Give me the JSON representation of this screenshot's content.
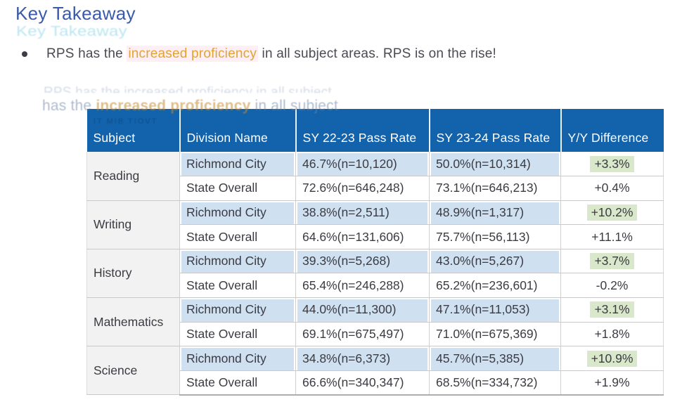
{
  "heading": {
    "title": "Key Takeaway",
    "color": "#3a5bab"
  },
  "takeaway": {
    "bullet_prefix": "RPS has the ",
    "highlight": "increased proficiency",
    "bullet_suffix": " in all subject areas. RPS is on the rise!",
    "highlight_color": "#e2a332"
  },
  "artifacts": {
    "ghost_heading": "Key Takeaway",
    "ghost_fragments": "RPS has the increased proficiency in all subject",
    "ghost_echo_prefix": "has the ",
    "ghost_echo_highlight": "increased proficiency",
    "ghost_echo_suffix": " in all subject",
    "ghost_tiny_text": "IT MIB TIOVT"
  },
  "table": {
    "columns": [
      "Subject",
      "Division Name",
      "SY 22-23 Pass Rate",
      "SY 23-24 Pass Rate",
      "Y/Y Difference"
    ],
    "colors": {
      "header_bg": "#1263ac",
      "header_text": "#ffffff",
      "richmond_row_bg": "#cfe0f1",
      "state_row_bg": "#ffffff",
      "subject_col_bg": "#f2f2f2",
      "positive_highlight_bg": "#d9e7ca"
    },
    "groups": [
      {
        "subject": "Reading",
        "rows": [
          {
            "division": "Richmond City",
            "sy2223": "46.7%(n=10,120)",
            "sy2324": "50.0%(n=10,314)",
            "diff": "+3.3%",
            "diff_highlight": true
          },
          {
            "division": "State Overall",
            "sy2223": "72.6%(n=646,248)",
            "sy2324": "73.1%(n=646,213)",
            "diff": "+0.4%",
            "diff_highlight": false
          }
        ]
      },
      {
        "subject": "Writing",
        "rows": [
          {
            "division": "Richmond City",
            "sy2223": "38.8%(n=2,511)",
            "sy2324": "48.9%(n=1,317)",
            "diff": "+10.2%",
            "diff_highlight": true
          },
          {
            "division": "State Overall",
            "sy2223": "64.6%(n=131,606)",
            "sy2324": "75.7%(n=56,113)",
            "diff": "+11.1%",
            "diff_highlight": false
          }
        ]
      },
      {
        "subject": "History",
        "rows": [
          {
            "division": "Richmond City",
            "sy2223": "39.3%(n=5,268)",
            "sy2324": "43.0%(n=5,267)",
            "diff": "+3.7%",
            "diff_highlight": true
          },
          {
            "division": "State Overall",
            "sy2223": "65.4%(n=246,288)",
            "sy2324": "65.2%(n=236,601)",
            "diff": "-0.2%",
            "diff_highlight": false
          }
        ]
      },
      {
        "subject": "Mathematics",
        "rows": [
          {
            "division": "Richmond City",
            "sy2223": "44.0%(n=11,300)",
            "sy2324": "47.1%(n=11,053)",
            "diff": "+3.1%",
            "diff_highlight": true
          },
          {
            "division": "State Overall",
            "sy2223": "69.1%(n=675,497)",
            "sy2324": "71.0%(n=675,369)",
            "diff": "+1.8%",
            "diff_highlight": false
          }
        ]
      },
      {
        "subject": "Science",
        "rows": [
          {
            "division": "Richmond City",
            "sy2223": "34.8%(n=6,373)",
            "sy2324": "45.7%(n=5,385)",
            "diff": "+10.9%",
            "diff_highlight": true
          },
          {
            "division": "State Overall",
            "sy2223": "66.6%(n=340,347)",
            "sy2324": "68.5%(n=334,732)",
            "diff": "+1.9%",
            "diff_highlight": false
          }
        ]
      }
    ]
  }
}
